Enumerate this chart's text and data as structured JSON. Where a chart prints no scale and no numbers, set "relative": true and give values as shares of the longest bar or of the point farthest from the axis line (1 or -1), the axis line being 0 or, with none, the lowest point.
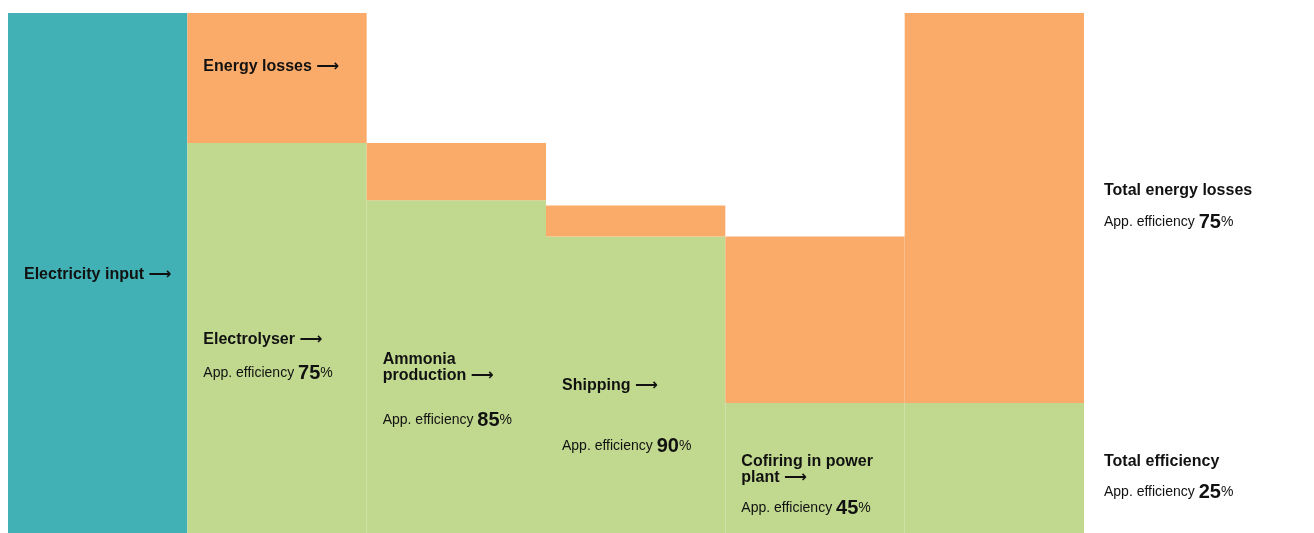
{
  "chart_data": {
    "type": "bar",
    "relative": true,
    "stacked": true,
    "categories": [
      "Electricity input ⟶",
      "Electrolyser ⟶",
      "Ammonia production ⟶",
      "Shipping ⟶",
      "Cofiring in power plant ⟶",
      null
    ],
    "series": [
      {
        "colors": [
          "#42b1b6",
          "#c1d98f",
          "#c1d98f",
          "#c1d98f",
          "#c1d98f",
          "#c1d98f"
        ],
        "values": [
          1,
          0.75,
          0.64,
          0.57,
          0.25,
          0.25
        ]
      },
      {
        "color": "#fbab69",
        "values": [
          null,
          0.25,
          0.11,
          0.06,
          0.32,
          0.75
        ]
      }
    ],
    "annotations": [
      "Energy losses ⟶",
      "App. efficiency 75%",
      "App. efficiency 85%",
      "App. efficiency 90%",
      "App. efficiency 45%",
      "Total energy losses",
      "App. efficiency 75%",
      "Total efficiency",
      "App. efficiency 25%"
    ],
    "grid": false
  }
}
